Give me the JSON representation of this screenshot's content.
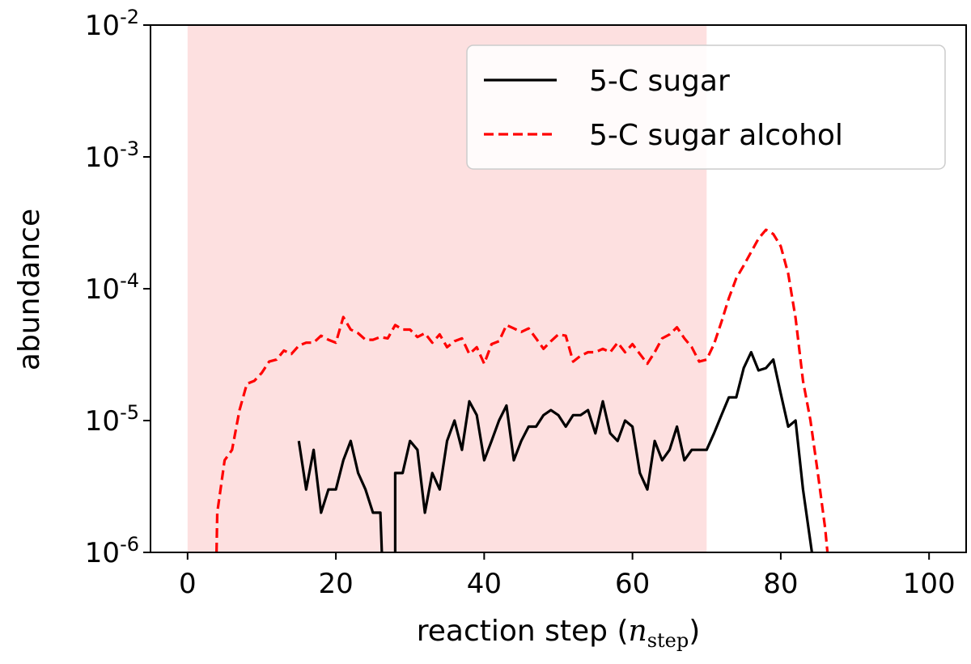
{
  "chart_data": {
    "type": "line",
    "title": "",
    "xlabel_main": "reaction step (",
    "xlabel_var": "n",
    "xlabel_sub": "step",
    "xlabel_close": ")",
    "ylabel": "abundance",
    "xlim": [
      -5,
      105
    ],
    "ylim_log10": [
      -6,
      -2
    ],
    "yscale": "log",
    "x_ticks": [
      0,
      20,
      40,
      60,
      80,
      100
    ],
    "x_tick_labels": [
      "0",
      "20",
      "40",
      "60",
      "80",
      "100"
    ],
    "y_ticks_exp": [
      -6,
      -5,
      -4,
      -3,
      -2
    ],
    "y_tick_base": "10",
    "y_tick_exponents": [
      "-6",
      "-5",
      "-4",
      "-3",
      "-2"
    ],
    "shaded_region": {
      "x_start": 0,
      "x_end": 70,
      "color": "#fde0e0"
    },
    "legend_position": "top-right",
    "series": [
      {
        "name": "5-C sugar",
        "color": "#000000",
        "dash": "solid",
        "segments": [
          [
            [
              15,
              7e-06
            ],
            [
              16,
              3e-06
            ],
            [
              17,
              6e-06
            ],
            [
              18,
              2e-06
            ],
            [
              19,
              3e-06
            ],
            [
              20,
              3e-06
            ],
            [
              21,
              5e-06
            ],
            [
              22,
              7e-06
            ],
            [
              23,
              4e-06
            ],
            [
              24,
              3e-06
            ],
            [
              25,
              2e-06
            ],
            [
              26,
              2e-06
            ],
            [
              26.2,
              1e-06
            ]
          ],
          [
            [
              28,
              1e-06
            ],
            [
              28,
              4e-06
            ],
            [
              29,
              4e-06
            ],
            [
              30,
              7e-06
            ],
            [
              31,
              6e-06
            ],
            [
              32,
              2e-06
            ],
            [
              33,
              4e-06
            ],
            [
              34,
              3e-06
            ],
            [
              35,
              7e-06
            ],
            [
              36,
              1e-05
            ],
            [
              37,
              6e-06
            ],
            [
              38,
              1.4e-05
            ],
            [
              39,
              1.1e-05
            ],
            [
              40,
              5e-06
            ],
            [
              41,
              7e-06
            ],
            [
              42,
              1e-05
            ],
            [
              43,
              1.3e-05
            ],
            [
              44,
              5e-06
            ],
            [
              45,
              7e-06
            ],
            [
              46,
              9e-06
            ],
            [
              47,
              9e-06
            ],
            [
              48,
              1.1e-05
            ],
            [
              49,
              1.2e-05
            ],
            [
              50,
              1.1e-05
            ],
            [
              51,
              9e-06
            ],
            [
              52,
              1.1e-05
            ],
            [
              53,
              1.1e-05
            ],
            [
              54,
              1.2e-05
            ],
            [
              55,
              8e-06
            ],
            [
              56,
              1.4e-05
            ],
            [
              57,
              8e-06
            ],
            [
              58,
              7e-06
            ],
            [
              59,
              1e-05
            ],
            [
              60,
              9e-06
            ],
            [
              61,
              4e-06
            ],
            [
              62,
              3e-06
            ],
            [
              63,
              7e-06
            ],
            [
              64,
              5e-06
            ],
            [
              65,
              6e-06
            ],
            [
              66,
              9e-06
            ],
            [
              67,
              5e-06
            ],
            [
              68,
              6e-06
            ],
            [
              69,
              6e-06
            ],
            [
              70,
              6e-06
            ],
            [
              71,
              8e-06
            ],
            [
              72,
              1.1e-05
            ],
            [
              73,
              1.5e-05
            ],
            [
              74,
              1.5e-05
            ],
            [
              75,
              2.5e-05
            ],
            [
              76,
              3.3e-05
            ],
            [
              77,
              2.4e-05
            ],
            [
              78,
              2.5e-05
            ],
            [
              79,
              2.9e-05
            ],
            [
              80,
              1.6e-05
            ],
            [
              81,
              9e-06
            ],
            [
              82,
              1e-05
            ],
            [
              83,
              3e-06
            ],
            [
              84.2,
              1e-06
            ]
          ]
        ]
      },
      {
        "name": "5-C sugar alcohol",
        "color": "#ff0000",
        "dash": "dashed",
        "segments": [
          [
            [
              3.9,
              1e-06
            ],
            [
              4,
              2e-06
            ],
            [
              5,
              5e-06
            ],
            [
              6,
              6e-06
            ],
            [
              7,
              1.2e-05
            ],
            [
              8,
              1.9e-05
            ],
            [
              9,
              2e-05
            ],
            [
              10,
              2.3e-05
            ],
            [
              11,
              2.8e-05
            ],
            [
              12,
              2.9e-05
            ],
            [
              13,
              3.4e-05
            ],
            [
              14,
              3.2e-05
            ],
            [
              15,
              3.7e-05
            ],
            [
              16,
              3.9e-05
            ],
            [
              17,
              3.9e-05
            ],
            [
              18,
              4.4e-05
            ],
            [
              19,
              4.1e-05
            ],
            [
              20,
              3.9e-05
            ],
            [
              21,
              6.1e-05
            ],
            [
              22,
              4.9e-05
            ],
            [
              23,
              4.6e-05
            ],
            [
              24,
              4.1e-05
            ],
            [
              25,
              4.1e-05
            ],
            [
              26,
              4.3e-05
            ],
            [
              27,
              4.2e-05
            ],
            [
              28,
              5.3e-05
            ],
            [
              29,
              4.9e-05
            ],
            [
              30,
              4.9e-05
            ],
            [
              31,
              4.3e-05
            ],
            [
              32,
              4.6e-05
            ],
            [
              33,
              3.9e-05
            ],
            [
              34,
              4.5e-05
            ],
            [
              35,
              3.6e-05
            ],
            [
              36,
              4e-05
            ],
            [
              37,
              4.2e-05
            ],
            [
              38,
              3.2e-05
            ],
            [
              39,
              3.6e-05
            ],
            [
              40,
              2.7e-05
            ],
            [
              41,
              3.8e-05
            ],
            [
              42,
              4e-05
            ],
            [
              43,
              5.3e-05
            ],
            [
              44,
              5e-05
            ],
            [
              45,
              4.7e-05
            ],
            [
              46,
              5e-05
            ],
            [
              47,
              4.2e-05
            ],
            [
              48,
              3.5e-05
            ],
            [
              49,
              4e-05
            ],
            [
              50,
              4.5e-05
            ],
            [
              51,
              4.4e-05
            ],
            [
              52,
              2.8e-05
            ],
            [
              53,
              3.1e-05
            ],
            [
              54,
              3.3e-05
            ],
            [
              55,
              3.3e-05
            ],
            [
              56,
              3.5e-05
            ],
            [
              57,
              3.3e-05
            ],
            [
              58,
              3.9e-05
            ],
            [
              59,
              3.3e-05
            ],
            [
              60,
              3.8e-05
            ],
            [
              61,
              3.2e-05
            ],
            [
              62,
              2.7e-05
            ],
            [
              63,
              3.3e-05
            ],
            [
              64,
              4.2e-05
            ],
            [
              65,
              4.5e-05
            ],
            [
              66,
              5.1e-05
            ],
            [
              67,
              4.2e-05
            ],
            [
              68,
              3.6e-05
            ],
            [
              69,
              2.8e-05
            ],
            [
              70,
              2.9e-05
            ],
            [
              71,
              3.8e-05
            ],
            [
              72,
              5.6e-05
            ],
            [
              73,
              8.5e-05
            ],
            [
              74,
              0.00012
            ],
            [
              75,
              0.00015
            ],
            [
              76,
              0.00019
            ],
            [
              77,
              0.00024
            ],
            [
              78,
              0.00028
            ],
            [
              79,
              0.00026
            ],
            [
              80,
              0.00021
            ],
            [
              81,
              0.00013
            ],
            [
              82,
              6e-05
            ],
            [
              83,
              2e-05
            ],
            [
              84,
              1e-05
            ],
            [
              85,
              4e-06
            ],
            [
              86,
              1.5e-06
            ],
            [
              86.3,
              1e-06
            ]
          ]
        ]
      }
    ]
  }
}
